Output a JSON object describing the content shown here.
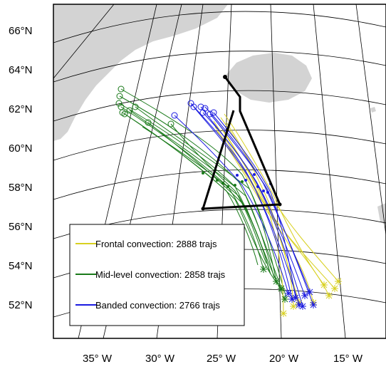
{
  "map": {
    "lat_labels": [
      "66°N",
      "64°N",
      "62°N",
      "60°N",
      "58°N",
      "56°N",
      "54°N",
      "52°N"
    ],
    "lon_labels": [
      "35° W",
      "30° W",
      "25° W",
      "20° W",
      "15° W"
    ],
    "legend": [
      {
        "label": "Frontal convection: 2888 trajs",
        "color": "#d8d020"
      },
      {
        "label": "Mid-level convection: 2858 trajs",
        "color": "#1a7a1a"
      },
      {
        "label": "Banded convection: 2766 trajs",
        "color": "#1a1ae0"
      }
    ],
    "colors": {
      "land": "#d3d3d3",
      "flight_track": "#000000",
      "graticule": "#000000"
    }
  }
}
